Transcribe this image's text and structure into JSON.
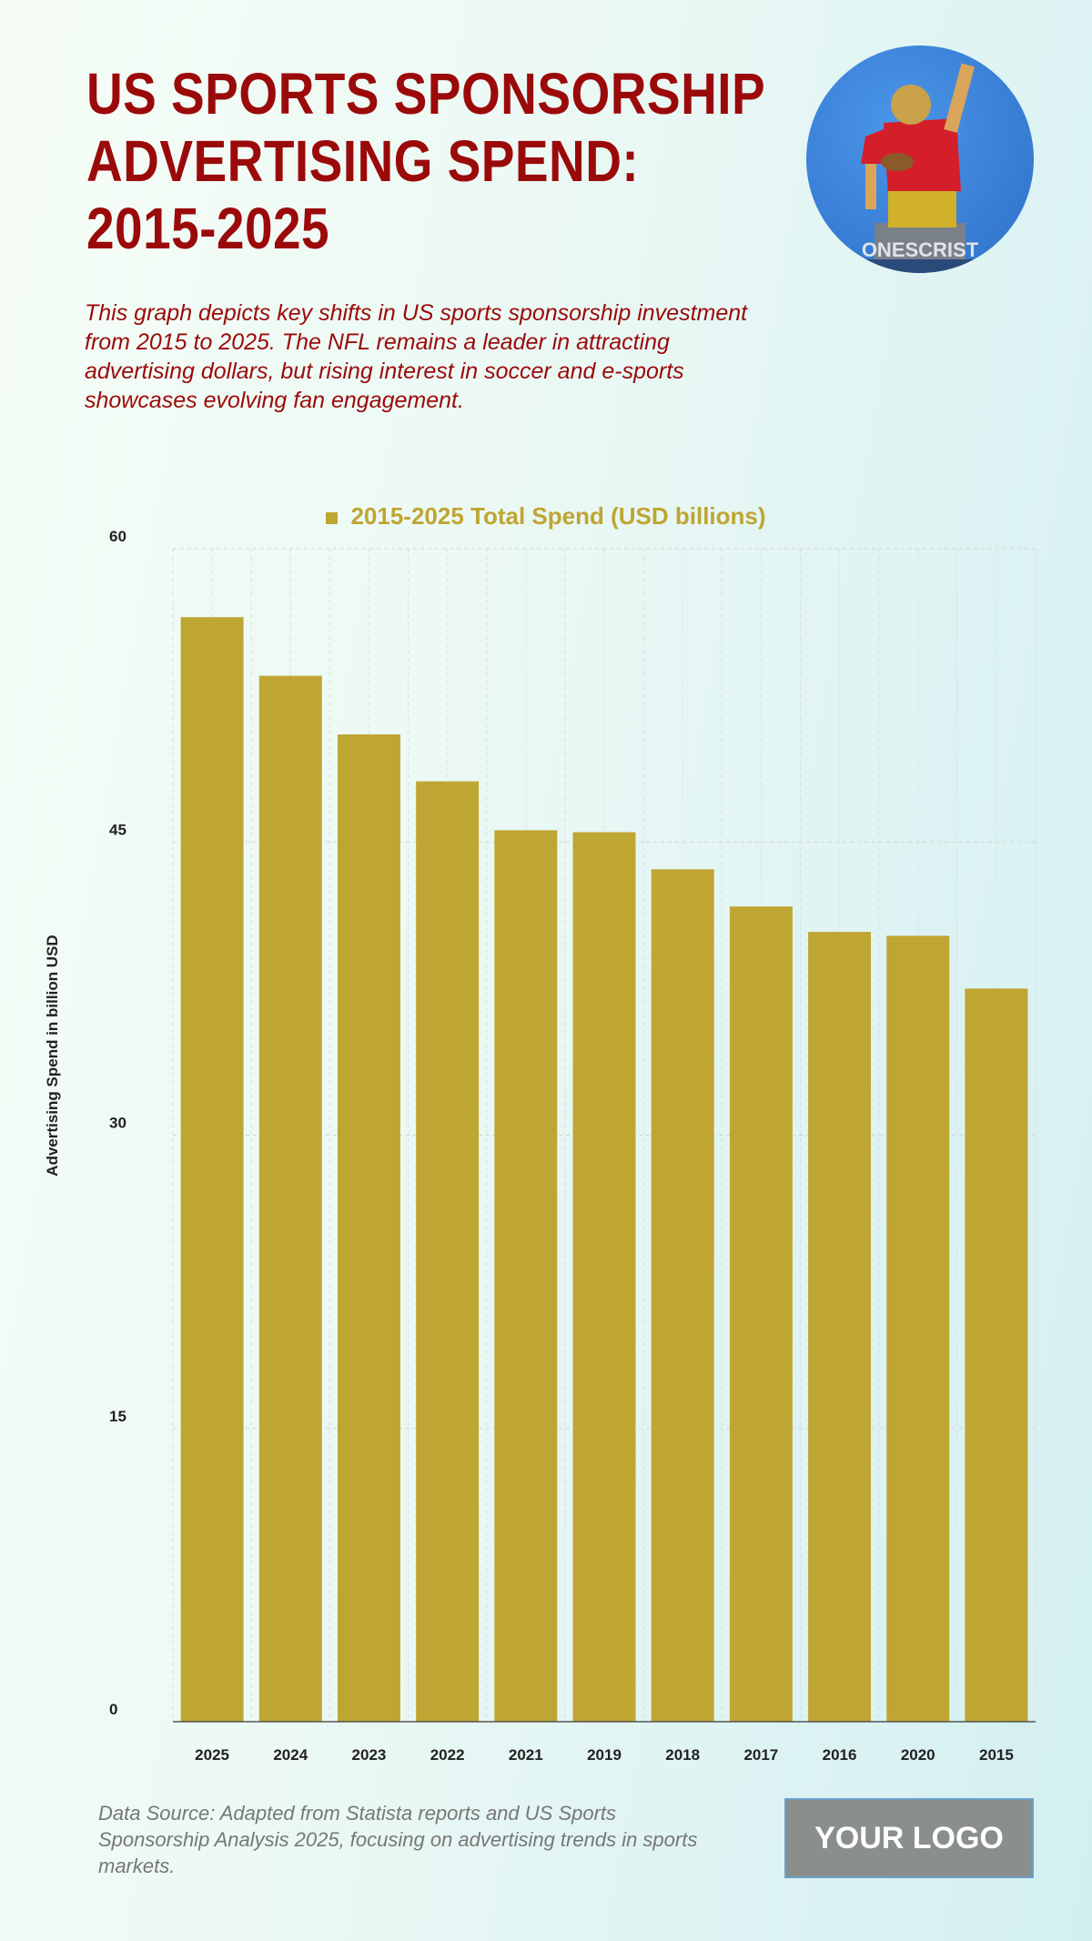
{
  "header": {
    "title": "US SPORTS SPONSORSHIP ADVERTISING SPEND: 2015-2025",
    "subtitle": "This graph depicts key shifts in US sports sponsorship investment from 2015 to 2025. The NFL remains a leader in attracting advertising dollars, but rising interest in soccer and e-sports showcases evolving fan engagement."
  },
  "photo": {
    "caption": "ONESCRIST"
  },
  "chart_data": {
    "type": "bar",
    "title": "",
    "legend": [
      "2015-2025 Total Spend (USD billions)"
    ],
    "legend_position": "top-center",
    "categories": [
      "2025",
      "2024",
      "2023",
      "2022",
      "2021",
      "2019",
      "2018",
      "2017",
      "2016",
      "2020",
      "2015"
    ],
    "values": [
      56.5,
      53.5,
      50.5,
      48.1,
      45.6,
      45.5,
      43.6,
      41.7,
      40.4,
      40.2,
      37.5
    ],
    "xlabel": "",
    "ylabel": "Advertising Spend in billion USD",
    "ylim": [
      0,
      60
    ],
    "yticks": [
      "0",
      "15",
      "30",
      "45",
      "60"
    ],
    "grid": true,
    "color": "#bfa532"
  },
  "footer": {
    "source": "Data Source: Adapted from Statista reports and US Sports Sponsorship Analysis 2025, focusing on advertising trends in sports markets.",
    "logo": "YOUR LOGO"
  }
}
